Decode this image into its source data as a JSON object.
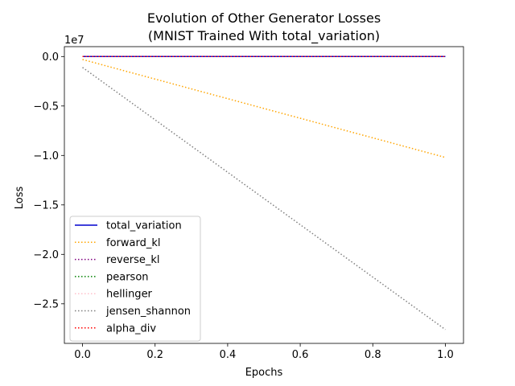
{
  "chart_data": {
    "type": "line",
    "title": "Evolution of Other Generator Losses",
    "subtitle": "(MNIST Trained With total_variation)",
    "xlabel": "Epochs",
    "ylabel": "Loss",
    "y_offset_label": "1e7",
    "xlim": [
      -0.05,
      1.05
    ],
    "ylim": [
      -29000000,
      1000000
    ],
    "x_ticks": [
      0.0,
      0.2,
      0.4,
      0.6,
      0.8,
      1.0
    ],
    "x_tick_labels": [
      "0.0",
      "0.2",
      "0.4",
      "0.6",
      "0.8",
      "1.0"
    ],
    "y_ticks": [
      0,
      -5000000,
      -10000000,
      -15000000,
      -20000000,
      -25000000
    ],
    "y_tick_labels": [
      "0.0",
      "−0.5",
      "−1.0",
      "−1.5",
      "−2.0",
      "−2.5"
    ],
    "grid": false,
    "legend_position": "lower-left",
    "series": [
      {
        "name": "total_variation",
        "x": [
          0,
          1
        ],
        "values": [
          0,
          0
        ],
        "color": "#0000cd",
        "style": "solid"
      },
      {
        "name": "forward_kl",
        "x": [
          0,
          1
        ],
        "values": [
          -300000,
          -10200000
        ],
        "color": "#ffa500",
        "style": "dotted"
      },
      {
        "name": "reverse_kl",
        "x": [
          0,
          1
        ],
        "values": [
          0,
          0
        ],
        "color": "#800080",
        "style": "dotted"
      },
      {
        "name": "pearson",
        "x": [
          0,
          1
        ],
        "values": [
          0,
          0
        ],
        "color": "#008000",
        "style": "dotted"
      },
      {
        "name": "hellinger",
        "x": [
          0,
          1
        ],
        "values": [
          0,
          0
        ],
        "color": "#ffc0cb",
        "style": "dotted"
      },
      {
        "name": "jensen_shannon",
        "x": [
          0,
          1
        ],
        "values": [
          -1100000,
          -27600000
        ],
        "color": "#808080",
        "style": "dotted"
      },
      {
        "name": "alpha_div",
        "x": [
          0,
          1
        ],
        "values": [
          0,
          0
        ],
        "color": "#ff0000",
        "style": "dotted"
      }
    ]
  }
}
